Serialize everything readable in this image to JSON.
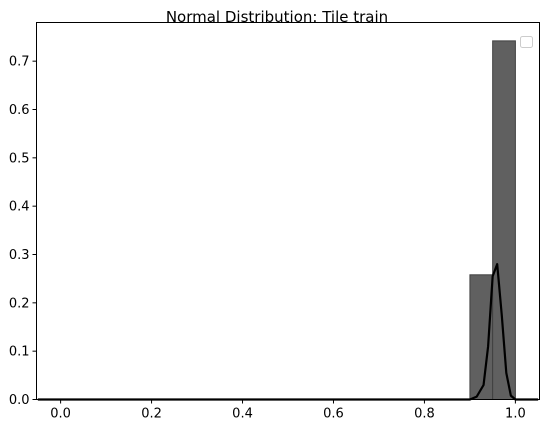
{
  "chart_data": {
    "type": "bar",
    "title": "Normal Distribution: Tile train",
    "xlabel": "",
    "ylabel": "",
    "xlim": [
      -0.053,
      1.053
    ],
    "ylim": [
      0,
      0.78
    ],
    "x_ticks": [
      0.0,
      0.2,
      0.4,
      0.6,
      0.8,
      1.0
    ],
    "x_tick_labels": [
      "0.0",
      "0.2",
      "0.4",
      "0.6",
      "0.8",
      "1.0"
    ],
    "y_ticks": [
      0.0,
      0.1,
      0.2,
      0.3,
      0.4,
      0.5,
      0.6,
      0.7
    ],
    "y_tick_labels": [
      "0.0",
      "0.1",
      "0.2",
      "0.3",
      "0.4",
      "0.5",
      "0.6",
      "0.7"
    ],
    "histogram": {
      "bins": [
        [
          0.9,
          0.95
        ],
        [
          0.95,
          1.0
        ]
      ],
      "values": [
        0.258,
        0.742
      ],
      "color": "#606060",
      "edgecolor": "#404040"
    },
    "pdf_curve": {
      "color": "#000000",
      "x": [
        -0.05,
        0.85,
        0.9,
        0.915,
        0.93,
        0.94,
        0.95,
        0.96,
        0.97,
        0.98,
        0.99,
        1.0,
        1.05
      ],
      "y": [
        0.0,
        0.0,
        0.0,
        0.006,
        0.03,
        0.11,
        0.255,
        0.28,
        0.175,
        0.055,
        0.008,
        0.0,
        0.0
      ]
    },
    "grid": false,
    "legend": {
      "position": "top-right",
      "entries": []
    }
  }
}
